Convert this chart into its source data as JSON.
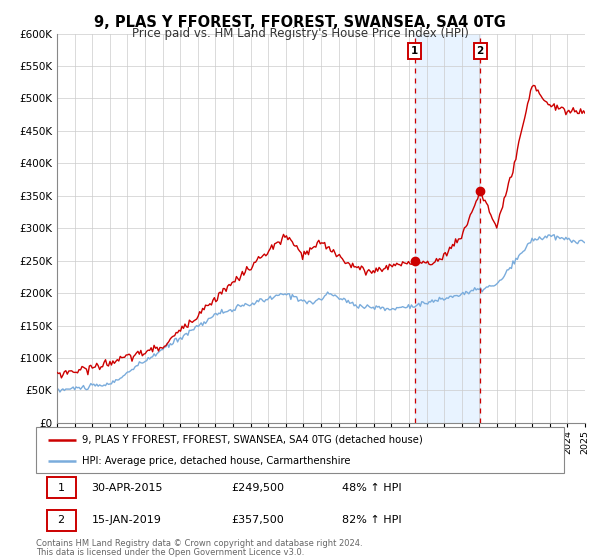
{
  "title": "9, PLAS Y FFOREST, FFOREST, SWANSEA, SA4 0TG",
  "subtitle": "Price paid vs. HM Land Registry's House Price Index (HPI)",
  "xmin": 1995,
  "xmax": 2025,
  "ymin": 0,
  "ymax": 600000,
  "yticks": [
    0,
    50000,
    100000,
    150000,
    200000,
    250000,
    300000,
    350000,
    400000,
    450000,
    500000,
    550000,
    600000
  ],
  "marker1_x": 2015.33,
  "marker1_y": 249500,
  "marker2_x": 2019.04,
  "marker2_y": 357500,
  "vline1_x": 2015.33,
  "vline2_x": 2019.04,
  "legend_line1": "9, PLAS Y FFOREST, FFOREST, SWANSEA, SA4 0TG (detached house)",
  "legend_line2": "HPI: Average price, detached house, Carmarthenshire",
  "table_row1": [
    "1",
    "30-APR-2015",
    "£249,500",
    "48% ↑ HPI"
  ],
  "table_row2": [
    "2",
    "15-JAN-2019",
    "£357,500",
    "82% ↑ HPI"
  ],
  "footnote1": "Contains HM Land Registry data © Crown copyright and database right 2024.",
  "footnote2": "This data is licensed under the Open Government Licence v3.0.",
  "red_color": "#cc0000",
  "blue_color": "#7aacdc",
  "grid_color": "#cccccc",
  "title_fontsize": 10.5,
  "subtitle_fontsize": 8.5
}
